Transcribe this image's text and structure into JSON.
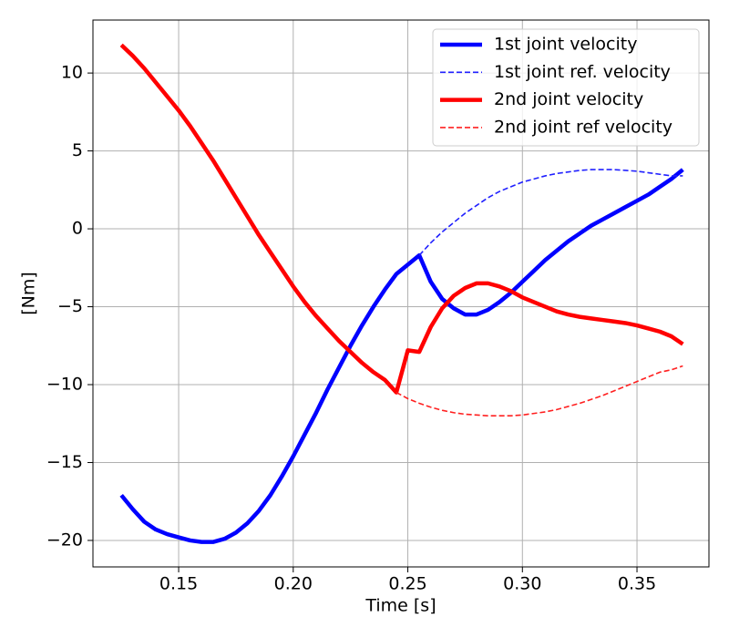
{
  "chart_data": {
    "type": "line",
    "xlabel": "Time [s]",
    "ylabel": "[Nm]",
    "x": [
      0.125,
      0.13,
      0.135,
      0.14,
      0.145,
      0.15,
      0.155,
      0.16,
      0.165,
      0.17,
      0.175,
      0.18,
      0.185,
      0.19,
      0.195,
      0.2,
      0.205,
      0.21,
      0.215,
      0.22,
      0.225,
      0.23,
      0.235,
      0.24,
      0.245,
      0.25,
      0.255,
      0.26,
      0.265,
      0.27,
      0.275,
      0.28,
      0.285,
      0.29,
      0.295,
      0.3,
      0.305,
      0.31,
      0.315,
      0.32,
      0.325,
      0.33,
      0.335,
      0.34,
      0.345,
      0.35,
      0.355,
      0.36,
      0.365,
      0.37
    ],
    "series": [
      {
        "name": "1st joint velocity",
        "color": "#0000ff",
        "linestyle": "solid",
        "values": [
          -17.1,
          -18.0,
          -18.8,
          -19.3,
          -19.6,
          -19.8,
          -20.0,
          -20.1,
          -20.1,
          -19.9,
          -19.5,
          -18.9,
          -18.1,
          -17.1,
          -15.9,
          -14.6,
          -13.2,
          -11.8,
          -10.3,
          -8.9,
          -7.5,
          -6.2,
          -5.0,
          -3.9,
          -2.9,
          -2.3,
          -1.7,
          -3.4,
          -4.5,
          -5.1,
          -5.5,
          -5.5,
          -5.2,
          -4.7,
          -4.1,
          -3.4,
          -2.7,
          -2.0,
          -1.4,
          -0.8,
          -0.3,
          0.2,
          0.6,
          1.0,
          1.4,
          1.8,
          2.2,
          2.7,
          3.2,
          3.8
        ]
      },
      {
        "name": "1st joint ref. velocity",
        "color": "#2020ff",
        "linestyle": "dashed",
        "values": [
          null,
          null,
          null,
          null,
          null,
          null,
          null,
          null,
          null,
          null,
          null,
          null,
          null,
          null,
          null,
          null,
          null,
          null,
          null,
          null,
          null,
          null,
          null,
          null,
          null,
          null,
          -1.7,
          -0.9,
          -0.2,
          0.4,
          1.0,
          1.5,
          2.0,
          2.4,
          2.7,
          3.0,
          3.2,
          3.4,
          3.55,
          3.65,
          3.75,
          3.8,
          3.8,
          3.8,
          3.75,
          3.7,
          3.6,
          3.5,
          3.4,
          3.4
        ]
      },
      {
        "name": "2nd joint velocity",
        "color": "#ff0000",
        "linestyle": "solid",
        "values": [
          11.8,
          11.1,
          10.3,
          9.4,
          8.5,
          7.6,
          6.6,
          5.5,
          4.4,
          3.2,
          2.0,
          0.8,
          -0.4,
          -1.5,
          -2.6,
          -3.7,
          -4.7,
          -5.6,
          -6.4,
          -7.2,
          -7.9,
          -8.6,
          -9.2,
          -9.7,
          -10.5,
          -7.8,
          -7.9,
          -6.3,
          -5.1,
          -4.3,
          -3.8,
          -3.5,
          -3.5,
          -3.7,
          -4.0,
          -4.4,
          -4.7,
          -5.0,
          -5.3,
          -5.5,
          -5.65,
          -5.75,
          -5.85,
          -5.95,
          -6.05,
          -6.2,
          -6.4,
          -6.6,
          -6.9,
          -7.4
        ]
      },
      {
        "name": "2nd joint ref velocity",
        "color": "#ff2020",
        "linestyle": "dashed",
        "values": [
          null,
          null,
          null,
          null,
          null,
          null,
          null,
          null,
          null,
          null,
          null,
          null,
          null,
          null,
          null,
          null,
          null,
          null,
          null,
          null,
          null,
          null,
          null,
          null,
          -10.5,
          -10.9,
          -11.2,
          -11.45,
          -11.65,
          -11.8,
          -11.9,
          -11.95,
          -12.0,
          -12.0,
          -12.0,
          -11.95,
          -11.85,
          -11.75,
          -11.6,
          -11.4,
          -11.2,
          -10.95,
          -10.7,
          -10.4,
          -10.1,
          -9.8,
          -9.5,
          -9.2,
          -9.05,
          -8.8
        ]
      }
    ],
    "xlim": [
      0.1126,
      0.3814
    ],
    "ylim": [
      -21.7,
      13.4
    ],
    "xticks": [
      0.15,
      {
        "value": 0.2,
        "label": "0.20"
      },
      0.25,
      {
        "value": 0.3,
        "label": "0.30"
      },
      0.35
    ],
    "yticks": [
      {
        "value": -20,
        "label": "−20"
      },
      {
        "value": -15,
        "label": "−15"
      },
      {
        "value": -10,
        "label": "−10"
      },
      {
        "value": -5,
        "label": "−5"
      },
      0,
      5,
      10
    ],
    "grid": true,
    "legend": "upper-right"
  }
}
